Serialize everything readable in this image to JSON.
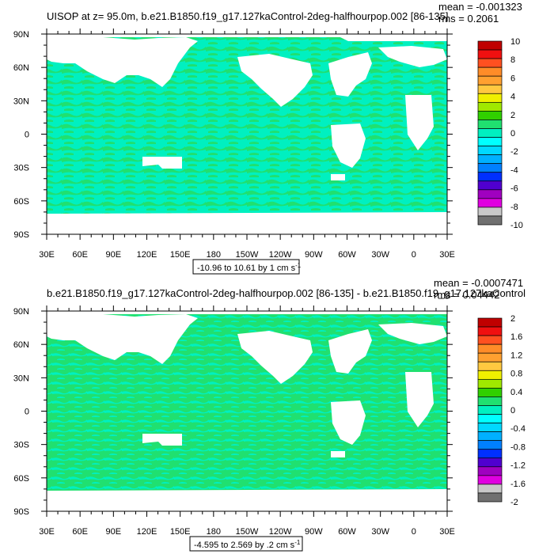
{
  "colors": {
    "ocean_band_a": "#00f0c0",
    "ocean_band_b": "#20e070",
    "land_mask": "#ffffff",
    "frame": "#000000"
  },
  "chart_data": [
    {
      "type": "heatmap",
      "map_projection": "cylindrical-equidistant",
      "title": "UISOP at z=  95.0m, b.e21.B1850.f19_g17.127kaControl-2deg-halfhourpop.002 [86-135]",
      "stats": {
        "mean": "mean = -0.001323",
        "rms": "rms = 0.2061"
      },
      "subtitle": "-10.96 to 10.61 by 1 cm s",
      "subtitle_sup": "-1",
      "x_ticks": [
        "30E",
        "60E",
        "90E",
        "120E",
        "150E",
        "180",
        "150W",
        "120W",
        "90W",
        "60W",
        "30W",
        "0",
        "30E"
      ],
      "y_ticks": [
        "90N",
        "60N",
        "30N",
        "0",
        "30S",
        "60S",
        "90S"
      ],
      "dominant_fill": "ocean_band_a",
      "colorbar": {
        "labels": [
          "10",
          "8",
          "6",
          "4",
          "2",
          "0",
          "-2",
          "-4",
          "-6",
          "-8",
          "-10"
        ],
        "colors": [
          "#c00000",
          "#f01010",
          "#ff5020",
          "#ff8c28",
          "#ffa030",
          "#ffc840",
          "#f0f000",
          "#a0e800",
          "#30d000",
          "#20e070",
          "#00f0c0",
          "#00ffff",
          "#00d8ff",
          "#00b0ff",
          "#0080ff",
          "#0030ff",
          "#5000d0",
          "#a000c0",
          "#e000e0",
          "#c8c8c8",
          "#707070"
        ]
      }
    },
    {
      "type": "heatmap",
      "map_projection": "cylindrical-equidistant",
      "title": "b.e21.B1850.f19_g17.127kaControl-2deg-halfhourpop.002 [86-135] - b.e21.B1850.f19_g17.127kaControl",
      "stats": {
        "mean": "mean = -0.0007471",
        "rms": "rms = 0.04442"
      },
      "subtitle": "-4.595 to 2.569 by .2 cm s",
      "subtitle_sup": "-1",
      "x_ticks": [
        "30E",
        "60E",
        "90E",
        "120E",
        "150E",
        "180",
        "150W",
        "120W",
        "90W",
        "60W",
        "30W",
        "0",
        "30E"
      ],
      "y_ticks": [
        "90N",
        "60N",
        "30N",
        "0",
        "30S",
        "60S",
        "90S"
      ],
      "dominant_fill": "ocean_band_b",
      "colorbar": {
        "labels": [
          "2",
          "1.6",
          "1.2",
          "0.8",
          "0.4",
          "0",
          "-0.4",
          "-0.8",
          "-1.2",
          "-1.6",
          "-2"
        ],
        "colors": [
          "#c00000",
          "#f01010",
          "#ff5020",
          "#ff8c28",
          "#ffa030",
          "#ffc840",
          "#f0f000",
          "#a0e800",
          "#30d000",
          "#20e070",
          "#00f0c0",
          "#00ffff",
          "#00d8ff",
          "#00b0ff",
          "#0080ff",
          "#0030ff",
          "#5000d0",
          "#a000c0",
          "#e000e0",
          "#c8c8c8",
          "#707070"
        ]
      }
    }
  ]
}
